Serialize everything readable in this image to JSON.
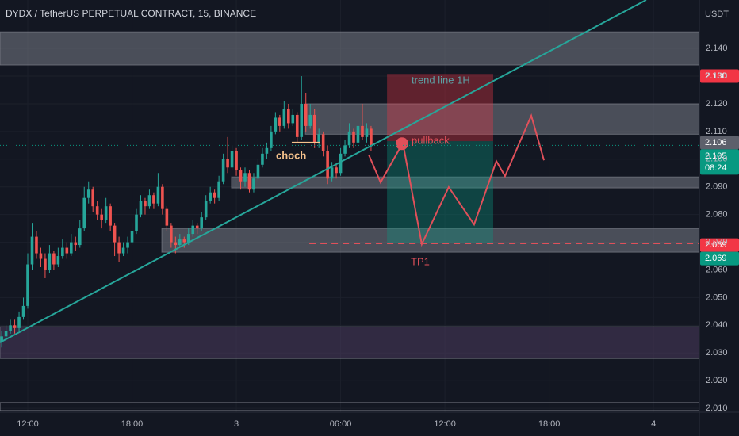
{
  "chart_data": {
    "type": "candlestick",
    "title": "DYDX / TetherUS PERPETUAL CONTRACT, 15, BINANCE",
    "y_axis_label": "USDT",
    "up_color": "#26a69a",
    "down_color": "#ef5350",
    "xlim": [
      -1.597,
      38.64
    ],
    "xticks": [
      {
        "value": 0,
        "label": "12:00"
      },
      {
        "value": 6,
        "label": "18:00"
      },
      {
        "value": 12,
        "label": "3"
      },
      {
        "value": 18,
        "label": "06:00"
      },
      {
        "value": 24,
        "label": "12:00"
      },
      {
        "value": 30,
        "label": "18:00"
      },
      {
        "value": 36,
        "label": "4"
      }
    ],
    "ylim": [
      2.0086,
      2.1575
    ],
    "yticks": [
      {
        "value": 2.01,
        "label": "2.010"
      },
      {
        "value": 2.02,
        "label": "2.020"
      },
      {
        "value": 2.03,
        "label": "2.030"
      },
      {
        "value": 2.04,
        "label": "2.040"
      },
      {
        "value": 2.05,
        "label": "2.050"
      },
      {
        "value": 2.06,
        "label": "2.060"
      },
      {
        "value": 2.07,
        "label": "2.070"
      },
      {
        "value": 2.08,
        "label": "2.080"
      },
      {
        "value": 2.09,
        "label": "2.090"
      },
      {
        "value": 2.1,
        "label": "2.100"
      },
      {
        "value": 2.11,
        "label": "2.110"
      },
      {
        "value": 2.12,
        "label": "2.120"
      },
      {
        "value": 2.13,
        "label": "2.130"
      },
      {
        "value": 2.14,
        "label": "2.140"
      }
    ],
    "grid": true,
    "candles": [
      [
        -1.5,
        2.034,
        2.038,
        2.032,
        2.036
      ],
      [
        -1.25,
        2.036,
        2.04,
        2.035,
        2.038
      ],
      [
        -1,
        2.038,
        2.042,
        2.037,
        2.04
      ],
      [
        -0.75,
        2.04,
        2.042,
        2.037,
        2.039
      ],
      [
        -0.5,
        2.039,
        2.045,
        2.038,
        2.043
      ],
      [
        -0.25,
        2.043,
        2.05,
        2.042,
        2.047
      ],
      [
        0,
        2.047,
        2.066,
        2.046,
        2.062
      ],
      [
        0.25,
        2.062,
        2.077,
        2.06,
        2.072
      ],
      [
        0.5,
        2.072,
        2.074,
        2.064,
        2.066
      ],
      [
        0.75,
        2.066,
        2.068,
        2.061,
        2.064
      ],
      [
        1,
        2.064,
        2.066,
        2.057,
        2.06
      ],
      [
        1.25,
        2.06,
        2.069,
        2.059,
        2.066
      ],
      [
        1.5,
        2.066,
        2.067,
        2.06,
        2.062
      ],
      [
        1.75,
        2.062,
        2.068,
        2.061,
        2.065
      ],
      [
        2,
        2.065,
        2.071,
        2.064,
        2.068
      ],
      [
        2.25,
        2.068,
        2.07,
        2.064,
        2.066
      ],
      [
        2.5,
        2.066,
        2.073,
        2.065,
        2.07
      ],
      [
        2.75,
        2.07,
        2.072,
        2.067,
        2.069
      ],
      [
        3,
        2.069,
        2.078,
        2.068,
        2.075
      ],
      [
        3.25,
        2.075,
        2.09,
        2.074,
        2.086
      ],
      [
        3.5,
        2.086,
        2.092,
        2.084,
        2.089
      ],
      [
        3.75,
        2.089,
        2.09,
        2.081,
        2.083
      ],
      [
        4,
        2.083,
        2.085,
        2.078,
        2.08
      ],
      [
        4.25,
        2.08,
        2.082,
        2.075,
        2.078
      ],
      [
        4.5,
        2.078,
        2.086,
        2.077,
        2.083
      ],
      [
        4.75,
        2.083,
        2.084,
        2.074,
        2.076
      ],
      [
        5,
        2.076,
        2.077,
        2.065,
        2.07
      ],
      [
        5.25,
        2.07,
        2.072,
        2.063,
        2.066
      ],
      [
        5.5,
        2.066,
        2.07,
        2.065,
        2.068
      ],
      [
        5.75,
        2.068,
        2.072,
        2.066,
        2.07
      ],
      [
        6,
        2.07,
        2.077,
        2.069,
        2.074
      ],
      [
        6.25,
        2.074,
        2.082,
        2.073,
        2.08
      ],
      [
        6.5,
        2.08,
        2.087,
        2.079,
        2.085
      ],
      [
        6.75,
        2.085,
        2.086,
        2.08,
        2.083
      ],
      [
        7,
        2.083,
        2.089,
        2.082,
        2.087
      ],
      [
        7.25,
        2.087,
        2.088,
        2.082,
        2.084
      ],
      [
        7.5,
        2.084,
        2.095,
        2.083,
        2.09
      ],
      [
        7.75,
        2.09,
        2.091,
        2.08,
        2.082
      ],
      [
        8,
        2.082,
        2.083,
        2.074,
        2.076
      ],
      [
        8.25,
        2.076,
        2.077,
        2.068,
        2.07
      ],
      [
        8.5,
        2.07,
        2.072,
        2.066,
        2.069
      ],
      [
        8.75,
        2.069,
        2.073,
        2.068,
        2.071
      ],
      [
        9,
        2.071,
        2.072,
        2.068,
        2.07
      ],
      [
        9.25,
        2.07,
        2.075,
        2.069,
        2.073
      ],
      [
        9.5,
        2.073,
        2.078,
        2.072,
        2.076
      ],
      [
        9.75,
        2.076,
        2.077,
        2.073,
        2.075
      ],
      [
        10,
        2.075,
        2.081,
        2.074,
        2.079
      ],
      [
        10.25,
        2.079,
        2.087,
        2.078,
        2.085
      ],
      [
        10.5,
        2.085,
        2.09,
        2.084,
        2.088
      ],
      [
        10.75,
        2.088,
        2.089,
        2.084,
        2.086
      ],
      [
        11,
        2.086,
        2.094,
        2.085,
        2.092
      ],
      [
        11.25,
        2.092,
        2.102,
        2.091,
        2.1
      ],
      [
        11.5,
        2.1,
        2.108,
        2.095,
        2.097
      ],
      [
        11.75,
        2.097,
        2.105,
        2.096,
        2.103
      ],
      [
        12,
        2.103,
        2.104,
        2.094,
        2.096
      ],
      [
        12.25,
        2.096,
        2.097,
        2.089,
        2.092
      ],
      [
        12.5,
        2.092,
        2.097,
        2.09,
        2.095
      ],
      [
        12.75,
        2.095,
        2.096,
        2.088,
        2.089
      ],
      [
        13,
        2.089,
        2.095,
        2.088,
        2.093
      ],
      [
        13.25,
        2.093,
        2.1,
        2.092,
        2.098
      ],
      [
        13.5,
        2.098,
        2.104,
        2.097,
        2.102
      ],
      [
        13.75,
        2.102,
        2.106,
        2.1,
        2.104
      ],
      [
        14,
        2.104,
        2.112,
        2.103,
        2.11
      ],
      [
        14.25,
        2.11,
        2.117,
        2.109,
        2.115
      ],
      [
        14.5,
        2.115,
        2.116,
        2.11,
        2.112
      ],
      [
        14.75,
        2.112,
        2.121,
        2.111,
        2.118
      ],
      [
        15,
        2.118,
        2.12,
        2.111,
        2.113
      ],
      [
        15.25,
        2.113,
        2.118,
        2.112,
        2.116
      ],
      [
        15.5,
        2.116,
        2.117,
        2.106,
        2.108
      ],
      [
        15.75,
        2.108,
        2.13,
        2.107,
        2.12
      ],
      [
        16,
        2.12,
        2.124,
        2.11,
        2.112
      ],
      [
        16.25,
        2.112,
        2.12,
        2.111,
        2.116
      ],
      [
        16.5,
        2.116,
        2.118,
        2.104,
        2.106
      ],
      [
        16.75,
        2.106,
        2.111,
        2.104,
        2.109
      ],
      [
        17,
        2.109,
        2.11,
        2.101,
        2.103
      ],
      [
        17.25,
        2.103,
        2.105,
        2.091,
        2.093
      ],
      [
        17.5,
        2.093,
        2.099,
        2.092,
        2.097
      ],
      [
        17.75,
        2.097,
        2.098,
        2.093,
        2.095
      ],
      [
        18,
        2.095,
        2.104,
        2.094,
        2.102
      ],
      [
        18.25,
        2.102,
        2.107,
        2.101,
        2.105
      ],
      [
        18.5,
        2.105,
        2.113,
        2.104,
        2.11
      ],
      [
        18.75,
        2.11,
        2.111,
        2.104,
        2.106
      ],
      [
        19,
        2.106,
        2.114,
        2.105,
        2.112
      ],
      [
        19.25,
        2.112,
        2.12,
        2.107,
        2.108
      ],
      [
        19.5,
        2.108,
        2.113,
        2.106,
        2.111
      ],
      [
        19.75,
        2.111,
        2.112,
        2.103,
        2.105
      ]
    ],
    "zones": [
      {
        "top": 2.146,
        "bottom": 2.134,
        "x0": -1.597,
        "color": "#787b86"
      },
      {
        "top": 2.12,
        "bottom": 2.109,
        "x0": 15.97,
        "color": "#787b86"
      },
      {
        "top": 2.0936,
        "bottom": 2.0896,
        "x0": 11.72,
        "color": "#787b86"
      },
      {
        "top": 2.075,
        "bottom": 2.0664,
        "x0": 7.71,
        "color": "#787b86"
      },
      {
        "top": 2.0395,
        "bottom": 2.028,
        "x0": -1.597,
        "color": "#4a3b5c"
      }
    ],
    "trend_line": {
      "x": [
        -1.6,
        35.58
      ],
      "y": [
        2.0338,
        2.1575
      ],
      "color": "#26a69a"
    },
    "position": {
      "x": [
        20.67,
        26.78
      ],
      "stop": 2.1308,
      "entry": 2.1065,
      "target": 2.0696
    },
    "projection": {
      "x": [
        19.62,
        20.3,
        21.58,
        22.67,
        24.22,
        25.68,
        26.96,
        27.46,
        28.97,
        29.7
      ],
      "y": [
        2.1016,
        2.0916,
        2.1059,
        2.0693,
        2.0899,
        2.0764,
        2.0993,
        2.0939,
        2.1157,
        2.0996
      ],
      "color": "#e0505a"
    },
    "pullback_point": {
      "x": 21.53,
      "y": 2.1056
    },
    "choch_line": {
      "x": [
        15.19,
        16.79
      ],
      "y": 2.106
    },
    "tp_line": {
      "x0": 16.2,
      "y": 2.0696
    },
    "annotations": [
      "trend line 1H",
      "pullback",
      "choch",
      "TP1"
    ],
    "price_tags": [
      {
        "value": 2.13,
        "label": "2.130",
        "color": "#f23645"
      },
      {
        "value": 2.106,
        "label": "2.106",
        "color": "#5d606b"
      },
      {
        "value": 2.105,
        "label": "2.105",
        "sublabel": "08:24",
        "color": "#089981"
      },
      {
        "value": 2.069,
        "label": "2.069",
        "color": "#f23645"
      },
      {
        "value": 2.069,
        "label": "2.069",
        "color": "#089981"
      }
    ]
  }
}
